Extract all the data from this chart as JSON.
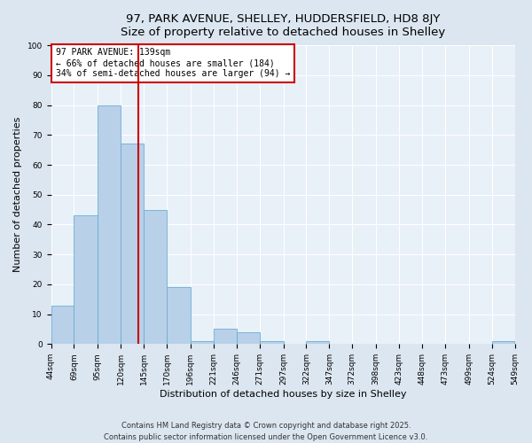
{
  "title_line1": "97, PARK AVENUE, SHELLEY, HUDDERSFIELD, HD8 8JY",
  "title_line2": "Size of property relative to detached houses in Shelley",
  "xlabel": "Distribution of detached houses by size in Shelley",
  "ylabel": "Number of detached properties",
  "bar_lefts": [
    44,
    69,
    95,
    120,
    145,
    170,
    196,
    221,
    246,
    271,
    297,
    322,
    347,
    372,
    398,
    423,
    448,
    473,
    499,
    524
  ],
  "bar_rights": [
    69,
    95,
    120,
    145,
    170,
    196,
    221,
    246,
    271,
    297,
    322,
    347,
    372,
    398,
    423,
    448,
    473,
    499,
    524,
    549
  ],
  "bar_heights": [
    13,
    43,
    80,
    67,
    45,
    19,
    1,
    5,
    4,
    1,
    0,
    1,
    0,
    0,
    0,
    0,
    0,
    0,
    0,
    1
  ],
  "bar_color": "#b8d0e8",
  "bar_edge_color": "#6baed6",
  "property_line_x": 139,
  "ylim": [
    0,
    100
  ],
  "xlim": [
    44,
    549
  ],
  "annotation_text": "97 PARK AVENUE: 139sqm\n← 66% of detached houses are smaller (184)\n34% of semi-detached houses are larger (94) →",
  "annotation_box_facecolor": "#ffffff",
  "annotation_box_edgecolor": "#cc0000",
  "footer_line1": "Contains HM Land Registry data © Crown copyright and database right 2025.",
  "footer_line2": "Contains public sector information licensed under the Open Government Licence v3.0.",
  "bg_color": "#dce6f0",
  "plot_bg_color": "#e8f0f8",
  "grid_color": "#ffffff",
  "title_fontsize": 9.5,
  "axis_label_fontsize": 8,
  "tick_label_fontsize": 6.5,
  "annotation_fontsize": 7,
  "footer_fontsize": 6
}
